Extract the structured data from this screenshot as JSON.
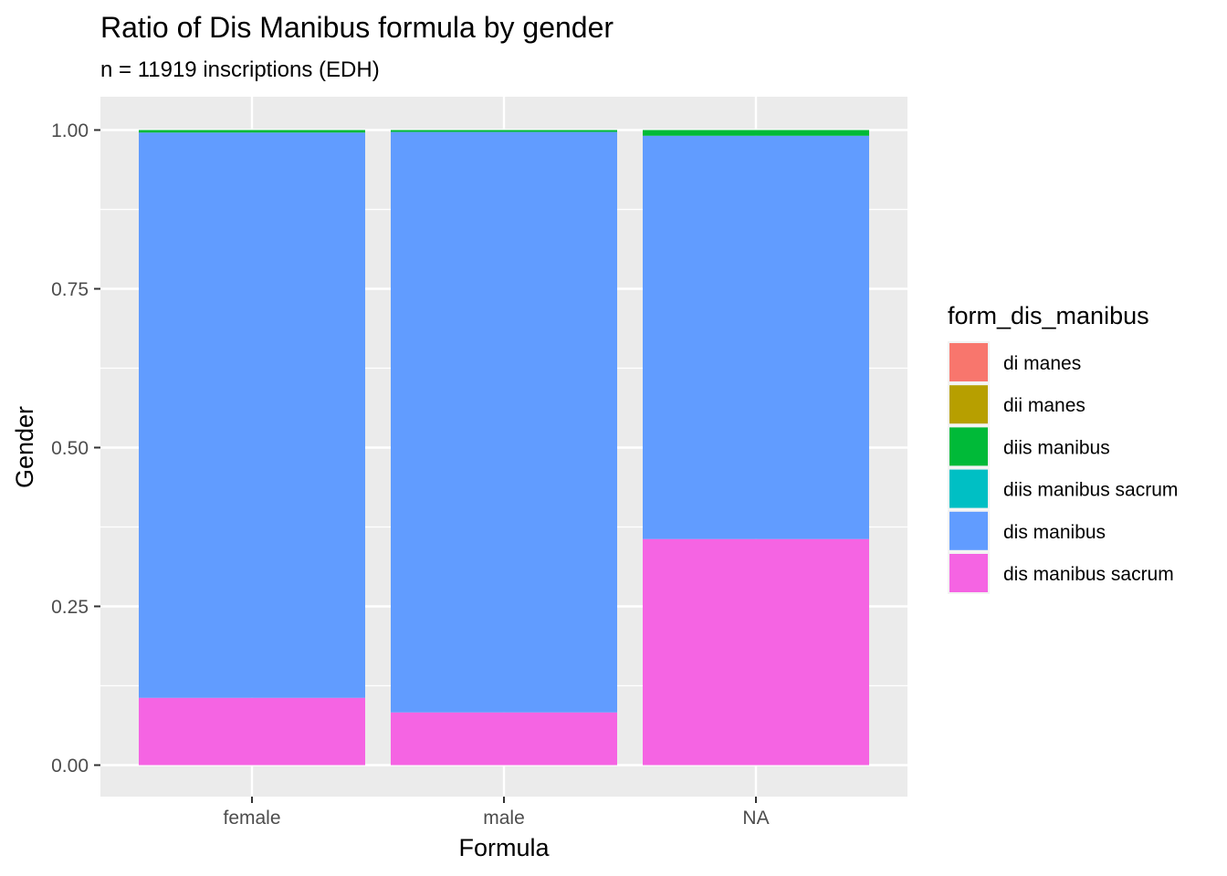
{
  "chart_data": {
    "type": "bar",
    "stacked": true,
    "position": "fill",
    "title": "Ratio of Dis Manibus formula by gender",
    "subtitle": "n = 11919 inscriptions (EDH)",
    "xlabel": "Formula",
    "ylabel": "Gender",
    "categories": [
      "female",
      "male",
      "NA"
    ],
    "ylim": [
      0,
      1
    ],
    "yticks": [
      0.0,
      0.25,
      0.5,
      0.75,
      1.0
    ],
    "ytick_labels": [
      "0.00",
      "0.25",
      "0.50",
      "0.75",
      "1.00"
    ],
    "grid": true,
    "legend": {
      "title": "form_dis_manibus",
      "placement": "right"
    },
    "series": [
      {
        "name": "di manes",
        "color": "#F8766D",
        "values": [
          0.0,
          0.0,
          0.0
        ]
      },
      {
        "name": "dii manes",
        "color": "#B79F00",
        "values": [
          0.0,
          0.0,
          0.0
        ]
      },
      {
        "name": "diis manibus",
        "color": "#00BA38",
        "values": [
          0.004,
          0.003,
          0.009
        ]
      },
      {
        "name": "diis manibus sacrum",
        "color": "#00BFC4",
        "values": [
          0.0,
          0.0,
          0.0
        ]
      },
      {
        "name": "dis manibus",
        "color": "#619CFF",
        "values": [
          0.89,
          0.914,
          0.635
        ]
      },
      {
        "name": "dis manibus sacrum",
        "color": "#F564E3",
        "values": [
          0.106,
          0.083,
          0.356
        ]
      }
    ]
  }
}
